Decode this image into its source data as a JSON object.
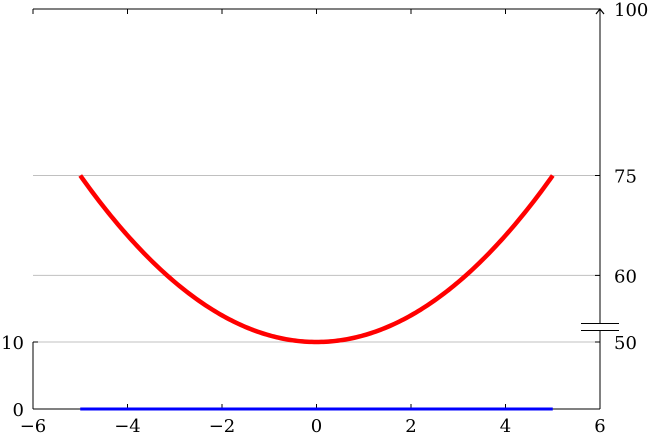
{
  "chart_data": {
    "type": "line",
    "title": "",
    "xlabel": "",
    "ylabel": "",
    "x_ticks": [
      "−6",
      "−4",
      "−2",
      "0",
      "2",
      "4",
      "6"
    ],
    "x_tick_values": [
      -6,
      -4,
      -2,
      0,
      2,
      4,
      6
    ],
    "xlim": [
      -6,
      6
    ],
    "left_axis": {
      "ticks": [
        "0",
        "10"
      ],
      "tick_values": [
        0,
        10
      ],
      "ylim": [
        0,
        10
      ]
    },
    "right_axis": {
      "ticks": [
        "50",
        "60",
        "75",
        "100"
      ],
      "tick_values": [
        50,
        60,
        75,
        100
      ],
      "ylim": [
        50,
        100
      ],
      "axis_break": true,
      "arrow_top": true
    },
    "grid": "horizontal",
    "series": [
      {
        "axis": "right",
        "color": "#ff0000",
        "x": [
          -5,
          -4.5,
          -4,
          -3.5,
          -3,
          -2.5,
          -2,
          -1.5,
          -1,
          -0.5,
          0,
          0.5,
          1,
          1.5,
          2,
          2.5,
          3,
          3.5,
          4,
          4.5,
          5
        ],
        "y": [
          75,
          70.25,
          66,
          62.25,
          59,
          56.25,
          54,
          52.25,
          51,
          50.25,
          50,
          50.25,
          51,
          52.25,
          54,
          56.25,
          59,
          62.25,
          66,
          70.25,
          75
        ]
      },
      {
        "axis": "left",
        "color": "#0000ff",
        "x": [
          -5,
          5
        ],
        "y": [
          0,
          0
        ]
      }
    ]
  }
}
